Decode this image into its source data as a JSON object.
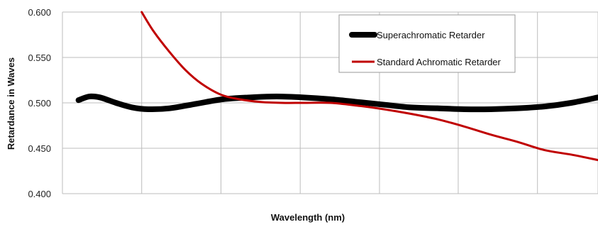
{
  "chart_data": {
    "type": "line",
    "xlabel": "Wavelength (nm)",
    "ylabel": "Retardance in Waves",
    "ylim": [
      0.4,
      0.6
    ],
    "xlim": [
      0,
      1
    ],
    "y_ticks": [
      "0.600",
      "0.550",
      "0.500",
      "0.450",
      "0.400"
    ],
    "x_grid": [
      0,
      0.148,
      0.296,
      0.444,
      0.592,
      0.739,
      0.887,
      1.0
    ],
    "grid": true,
    "legend": "top-right",
    "series": [
      {
        "name": "Superachromatic Retarder",
        "color": "#000000",
        "x": [
          0.03,
          0.05,
          0.07,
          0.1,
          0.13,
          0.16,
          0.2,
          0.25,
          0.3,
          0.35,
          0.4,
          0.45,
          0.5,
          0.55,
          0.6,
          0.65,
          0.7,
          0.75,
          0.8,
          0.85,
          0.9,
          0.95,
          1.0
        ],
        "y": [
          0.503,
          0.507,
          0.506,
          0.5,
          0.495,
          0.493,
          0.494,
          0.499,
          0.504,
          0.506,
          0.507,
          0.506,
          0.504,
          0.501,
          0.498,
          0.495,
          0.494,
          0.493,
          0.493,
          0.494,
          0.496,
          0.5,
          0.506
        ]
      },
      {
        "name": "Standard Achromatic Retarder",
        "color": "#c00000",
        "x": [
          0.148,
          0.17,
          0.2,
          0.23,
          0.26,
          0.296,
          0.33,
          0.37,
          0.41,
          0.45,
          0.5,
          0.55,
          0.6,
          0.65,
          0.7,
          0.75,
          0.8,
          0.85,
          0.9,
          0.95,
          1.0
        ],
        "y": [
          0.6,
          0.579,
          0.556,
          0.536,
          0.521,
          0.509,
          0.504,
          0.501,
          0.5,
          0.5,
          0.5,
          0.497,
          0.493,
          0.488,
          0.482,
          0.474,
          0.465,
          0.457,
          0.448,
          0.443,
          0.437
        ]
      }
    ]
  }
}
